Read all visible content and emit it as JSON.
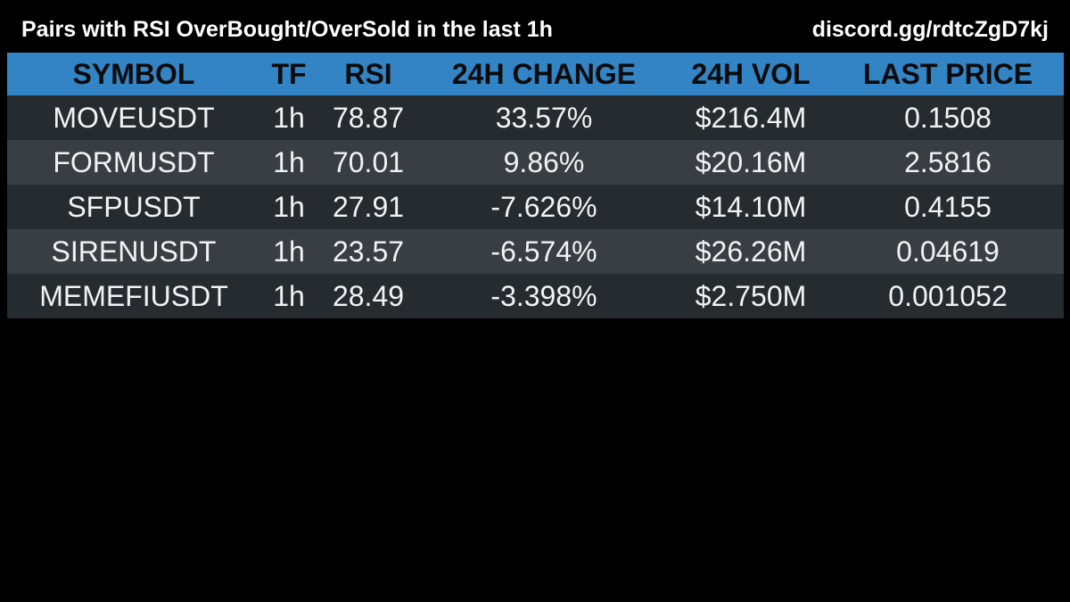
{
  "header": {
    "title": "Pairs with RSI OverBought/OverSold in the last 1h",
    "discord": "discord.gg/rdtcZgD7kj"
  },
  "chart_data": {
    "type": "table",
    "columns": [
      "SYMBOL",
      "TF",
      "RSI",
      "24H CHANGE",
      "24H VOL",
      "LAST PRICE"
    ],
    "rows": [
      [
        "MOVEUSDT",
        "1h",
        "78.87",
        "33.57%",
        "$216.4M",
        "0.1508"
      ],
      [
        "FORMUSDT",
        "1h",
        "70.01",
        "9.86%",
        "$20.16M",
        "2.5816"
      ],
      [
        "SFPUSDT",
        "1h",
        "27.91",
        "-7.626%",
        "$14.10M",
        "0.4155"
      ],
      [
        "SIRENUSDT",
        "1h",
        "23.57",
        "-6.574%",
        "$26.26M",
        "0.04619"
      ],
      [
        "MEMEFIUSDT",
        "1h",
        "28.49",
        "-3.398%",
        "$2.750M",
        "0.001052"
      ]
    ]
  },
  "colors": {
    "background": "#000000",
    "header_bg": "#3384c5",
    "row_dark": "#262b30",
    "row_light": "#393e44",
    "text": "#f2f2f2"
  }
}
